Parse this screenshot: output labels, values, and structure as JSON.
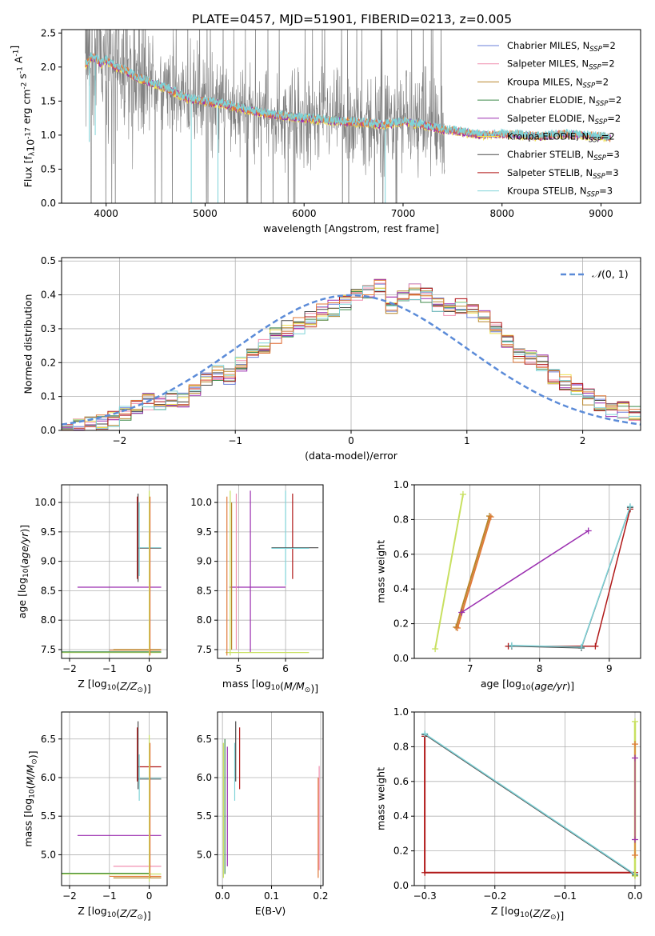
{
  "figure_title": "PLATE=0457, MJD=51901, FIBERID=0213, z=0.005",
  "colors": {
    "Chabrier MILES": "#6a7fd8",
    "Salpeter MILES": "#f08fb0",
    "Kroupa MILES": "#b8862b",
    "Chabrier ELODIE": "#3f8a4a",
    "Salpeter ELODIE": "#9b2fb0",
    "Kroupa ELODIE": "#f0e050",
    "Chabrier STELIB": "#4a4a4a",
    "Salpeter STELIB": "#b01818",
    "Kroupa STELIB": "#7fd3d8",
    "data": "#808080",
    "orange": "#e07a3a",
    "yellowgreen": "#c8e060",
    "gaussian": "#5b8bd8"
  },
  "chart_data": [
    {
      "id": "spectrum",
      "type": "line",
      "title": "PLATE=0457, MJD=51901, FIBERID=0213, z=0.005",
      "xlabel": "wavelength [Angstrom, rest frame]",
      "ylabel": "Flux [f_λ10^-17 erg cm^-2 s^-1 A^-1]",
      "xlim": [
        3550,
        9400
      ],
      "ylim": [
        0,
        2.55
      ],
      "xticks": [
        4000,
        5000,
        6000,
        7000,
        8000,
        9000
      ],
      "yticks": [
        0.0,
        0.5,
        1.0,
        1.5,
        2.0,
        2.5
      ],
      "grid": false,
      "legend_position": "top-right",
      "legend": [
        {
          "name": "Chabrier MILES, N_SSP=2",
          "base": "Chabrier MILES, N",
          "sub": "SSP",
          "tail": "=2"
        },
        {
          "name": "Salpeter MILES, N_SSP=2",
          "base": "Salpeter MILES, N",
          "sub": "SSP",
          "tail": "=2"
        },
        {
          "name": "Kroupa MILES, N_SSP=2",
          "base": "Kroupa MILES, N",
          "sub": "SSP",
          "tail": "=2"
        },
        {
          "name": "Chabrier ELODIE, N_SSP=2",
          "base": "Chabrier ELODIE, N",
          "sub": "SSP",
          "tail": "=2"
        },
        {
          "name": "Salpeter ELODIE, N_SSP=2",
          "base": "Salpeter ELODIE, N",
          "sub": "SSP",
          "tail": "=2"
        },
        {
          "name": "Kroupa ELODIE, N_SSP=2",
          "base": "Kroupa ELODIE, N",
          "sub": "SSP",
          "tail": "=2"
        },
        {
          "name": "Chabrier STELIB, N_SSP=3",
          "base": "Chabrier STELIB, N",
          "sub": "SSP",
          "tail": "=3"
        },
        {
          "name": "Salpeter STELIB, N_SSP=3",
          "base": "Salpeter STELIB, N",
          "sub": "SSP",
          "tail": "=3"
        },
        {
          "name": "Kroupa STELIB, N_SSP=3",
          "base": "Kroupa STELIB, N",
          "sub": "SSP",
          "tail": "=3"
        }
      ],
      "continuum": {
        "x": [
          3800,
          3850,
          3900,
          3950,
          4000,
          4100,
          4200,
          4300,
          4400,
          4600,
          4800,
          5000,
          5200,
          5400,
          5600,
          5800,
          6000,
          6200,
          6400,
          6600,
          6800,
          7000,
          7200,
          7400,
          7600,
          7800,
          8000,
          8200,
          8400,
          8600,
          8800,
          9000,
          9100
        ],
        "y": [
          2.05,
          2.15,
          2.12,
          2.05,
          2.1,
          2.0,
          1.95,
          1.85,
          1.8,
          1.7,
          1.55,
          1.5,
          1.45,
          1.38,
          1.32,
          1.28,
          1.25,
          1.22,
          1.2,
          1.18,
          1.15,
          1.2,
          1.15,
          1.08,
          1.05,
          1.0,
          1.02,
          1.0,
          0.98,
          1.02,
          1.0,
          0.98,
          0.95
        ]
      },
      "data_range": [
        3790,
        7420
      ],
      "model_range": [
        3790,
        9100
      ]
    },
    {
      "id": "residuals",
      "type": "histogram",
      "xlabel": "(data-model)/error",
      "ylabel": "Normed distribution",
      "xlim": [
        -2.5,
        2.5
      ],
      "ylim": [
        0,
        0.51
      ],
      "xticks": [
        -2,
        -1,
        0,
        1,
        2
      ],
      "yticks": [
        0.0,
        0.1,
        0.2,
        0.3,
        0.4,
        0.5
      ],
      "grid": true,
      "legend_position": "top-right",
      "gaussian_label": "N(0,1)",
      "gaussian_label_script": "𝒩",
      "gaussian_label_tail": "(0, 1)",
      "bin_start": -2.5,
      "bin_width": 0.1,
      "base_heights": [
        0.005,
        0.01,
        0.015,
        0.025,
        0.035,
        0.05,
        0.065,
        0.085,
        0.085,
        0.095,
        0.09,
        0.12,
        0.15,
        0.17,
        0.16,
        0.2,
        0.23,
        0.25,
        0.28,
        0.3,
        0.31,
        0.33,
        0.35,
        0.36,
        0.38,
        0.4,
        0.41,
        0.43,
        0.37,
        0.4,
        0.41,
        0.4,
        0.37,
        0.35,
        0.37,
        0.35,
        0.33,
        0.3,
        0.26,
        0.22,
        0.22,
        0.2,
        0.16,
        0.14,
        0.12,
        0.1,
        0.08,
        0.065,
        0.06,
        0.05
      ]
    },
    {
      "id": "age-vs-Z",
      "type": "errorbar",
      "xlabel": "Z [log10(Z/Z⊙)]",
      "ylabel": "age [log10(age/yr)]",
      "xlim": [
        -2.2,
        0.45
      ],
      "ylim": [
        7.35,
        10.3
      ],
      "xticks": [
        -2,
        -1,
        0
      ],
      "yticks": [
        7.5,
        8.0,
        8.5,
        9.0,
        9.5,
        10.0
      ],
      "grid": true,
      "segments": [
        {
          "c": "#9b2fb0",
          "x": [
            -1.8,
            0.3
          ],
          "y": [
            8.56,
            8.56
          ]
        },
        {
          "c": "#c8e060",
          "x": [
            -2.2,
            0.3
          ],
          "y": [
            7.45,
            7.45
          ]
        },
        {
          "c": "#3f8a4a",
          "x": [
            -2.2,
            0.3
          ],
          "y": [
            7.46,
            7.46
          ]
        },
        {
          "c": "#e07a3a",
          "x": [
            -1.0,
            0.3
          ],
          "y": [
            7.49,
            7.49
          ]
        },
        {
          "c": "#b8862b",
          "x": [
            -0.9,
            0.3
          ],
          "y": [
            7.5,
            7.5
          ]
        },
        {
          "c": "#7fd3d8",
          "x": [
            -0.3,
            0.3
          ],
          "y": [
            9.23,
            9.23
          ]
        },
        {
          "c": "#808080",
          "x": [
            -0.3,
            0.3
          ],
          "y": [
            9.22,
            9.22
          ]
        },
        {
          "c": "#4a4a4a",
          "x": [
            -0.28,
            -0.28
          ],
          "y": [
            8.65,
            10.15
          ]
        },
        {
          "c": "#b01818",
          "x": [
            -0.3,
            -0.3
          ],
          "y": [
            8.7,
            10.1
          ]
        },
        {
          "c": "#7fd3d8",
          "x": [
            -0.25,
            -0.25
          ],
          "y": [
            8.75,
            10.0
          ]
        },
        {
          "c": "#c8e060",
          "x": [
            0.0,
            0.0
          ],
          "y": [
            7.4,
            10.2
          ]
        },
        {
          "c": "#e07a3a",
          "x": [
            0.02,
            0.02
          ],
          "y": [
            7.4,
            10.1
          ]
        }
      ]
    },
    {
      "id": "age-vs-mass",
      "type": "errorbar",
      "xlabel": "mass [log10(M/M⊙)]",
      "ylabel": "",
      "xlim": [
        4.55,
        6.8
      ],
      "ylim": [
        7.35,
        10.3
      ],
      "xticks": [
        5,
        6
      ],
      "yticks": [
        7.5,
        8.0,
        8.5,
        9.0,
        9.5,
        10.0
      ],
      "grid": true,
      "segments": [
        {
          "c": "#9b2fb0",
          "x": [
            4.8,
            6.0
          ],
          "y": [
            8.56,
            8.56
          ]
        },
        {
          "c": "#9b2fb0",
          "x": [
            5.25,
            5.25
          ],
          "y": [
            7.45,
            10.2
          ]
        },
        {
          "c": "#c8e060",
          "x": [
            4.72,
            6.5
          ],
          "y": [
            7.45,
            7.45
          ]
        },
        {
          "c": "#c8e060",
          "x": [
            4.82,
            4.82
          ],
          "y": [
            7.4,
            10.2
          ]
        },
        {
          "c": "#e07a3a",
          "x": [
            4.75,
            4.75
          ],
          "y": [
            7.4,
            10.1
          ]
        },
        {
          "c": "#f08fb0",
          "x": [
            4.95,
            4.95
          ],
          "y": [
            7.5,
            10.15
          ]
        },
        {
          "c": "#b8862b",
          "x": [
            4.85,
            4.85
          ],
          "y": [
            7.5,
            10.0
          ]
        },
        {
          "c": "#7fd3d8",
          "x": [
            6.0,
            6.0
          ],
          "y": [
            8.6,
            10.2
          ]
        },
        {
          "c": "#b01818",
          "x": [
            6.15,
            6.15
          ],
          "y": [
            8.7,
            10.15
          ]
        },
        {
          "c": "#4a4a4a",
          "x": [
            5.7,
            6.7
          ],
          "y": [
            9.23,
            9.23
          ]
        },
        {
          "c": "#7fd3d8",
          "x": [
            5.7,
            6.5
          ],
          "y": [
            9.22,
            9.22
          ]
        }
      ]
    },
    {
      "id": "weight-vs-age",
      "type": "line",
      "xlabel": "age [log10(age/yr)]",
      "ylabel": "mass weight",
      "xlim": [
        6.2,
        9.45
      ],
      "ylim": [
        0.0,
        1.0
      ],
      "xticks": [
        7,
        8,
        9
      ],
      "yticks": [
        0.0,
        0.2,
        0.4,
        0.6,
        0.8,
        1.0
      ],
      "grid": true,
      "series": [
        {
          "c": "#c8e060",
          "x": [
            6.5,
            6.9
          ],
          "y": [
            0.055,
            0.945
          ],
          "w": 2
        },
        {
          "c": "#b8862b",
          "x": [
            6.8,
            7.28
          ],
          "y": [
            0.18,
            0.82
          ],
          "w": 2
        },
        {
          "c": "#e07a3a",
          "x": [
            6.82,
            7.3
          ],
          "y": [
            0.175,
            0.815
          ],
          "w": 2
        },
        {
          "c": "#9b2fb0",
          "x": [
            6.88,
            8.7
          ],
          "y": [
            0.265,
            0.735
          ],
          "w": 1.5
        },
        {
          "c": "#b01818",
          "x": [
            7.55,
            8.8,
            9.3
          ],
          "y": [
            0.07,
            0.07,
            0.86
          ],
          "w": 1.5
        },
        {
          "c": "#4a4a4a",
          "x": [
            7.6,
            8.6,
            9.3
          ],
          "y": [
            0.07,
            0.06,
            0.87
          ],
          "w": 1.2
        },
        {
          "c": "#7fd3d8",
          "x": [
            7.6,
            8.6,
            9.3
          ],
          "y": [
            0.075,
            0.065,
            0.875
          ],
          "w": 1.5
        }
      ]
    },
    {
      "id": "mass-vs-Z",
      "type": "errorbar",
      "xlabel": "Z [log10(Z/Z⊙)]",
      "ylabel": "mass [log10(M/M⊙)]",
      "xlim": [
        -2.2,
        0.45
      ],
      "ylim": [
        4.6,
        6.85
      ],
      "xticks": [
        -2,
        -1,
        0
      ],
      "yticks": [
        5.0,
        5.5,
        6.0,
        6.5
      ],
      "grid": true,
      "segments": [
        {
          "c": "#9b2fb0",
          "x": [
            -1.8,
            0.3
          ],
          "y": [
            5.25,
            5.25
          ]
        },
        {
          "c": "#f08fb0",
          "x": [
            -0.9,
            0.3
          ],
          "y": [
            4.85,
            4.85
          ]
        },
        {
          "c": "#c8e060",
          "x": [
            -2.2,
            0.3
          ],
          "y": [
            4.75,
            4.75
          ]
        },
        {
          "c": "#3f8a4a",
          "x": [
            -2.2,
            0.0
          ],
          "y": [
            4.76,
            4.76
          ]
        },
        {
          "c": "#e07a3a",
          "x": [
            -1.0,
            0.3
          ],
          "y": [
            4.72,
            4.72
          ]
        },
        {
          "c": "#b8862b",
          "x": [
            -0.9,
            0.3
          ],
          "y": [
            4.7,
            4.7
          ]
        },
        {
          "c": "#b01818",
          "x": [
            -0.3,
            0.3
          ],
          "y": [
            6.14,
            6.14
          ]
        },
        {
          "c": "#7fd3d8",
          "x": [
            -0.3,
            0.3
          ],
          "y": [
            5.99,
            5.99
          ]
        },
        {
          "c": "#808080",
          "x": [
            -0.3,
            0.3
          ],
          "y": [
            5.98,
            5.98
          ]
        },
        {
          "c": "#4a4a4a",
          "x": [
            -0.28,
            -0.28
          ],
          "y": [
            5.85,
            6.73
          ]
        },
        {
          "c": "#b01818",
          "x": [
            -0.3,
            -0.3
          ],
          "y": [
            5.95,
            6.65
          ]
        },
        {
          "c": "#7fd3d8",
          "x": [
            -0.25,
            -0.25
          ],
          "y": [
            5.7,
            6.3
          ]
        },
        {
          "c": "#c8e060",
          "x": [
            0.0,
            0.0
          ],
          "y": [
            4.65,
            6.55
          ]
        },
        {
          "c": "#e07a3a",
          "x": [
            0.02,
            0.02
          ],
          "y": [
            4.7,
            6.45
          ]
        }
      ]
    },
    {
      "id": "mass-vs-EBV",
      "type": "errorbar",
      "xlabel": "E(B-V)",
      "ylabel": "",
      "xlim": [
        -0.01,
        0.205
      ],
      "ylim": [
        4.6,
        6.85
      ],
      "xticks": [
        0.0,
        0.1,
        0.2
      ],
      "yticks": [
        5.0,
        5.5,
        6.0,
        6.5
      ],
      "grid": true,
      "segments": [
        {
          "c": "#c8e060",
          "x": [
            0.002,
            0.002
          ],
          "y": [
            4.7,
            6.45
          ]
        },
        {
          "c": "#3f8a4a",
          "x": [
            0.005,
            0.005
          ],
          "y": [
            4.75,
            6.5
          ]
        },
        {
          "c": "#9b2fb0",
          "x": [
            0.01,
            0.01
          ],
          "y": [
            4.85,
            6.4
          ]
        },
        {
          "c": "#7fd3d8",
          "x": [
            0.025,
            0.025
          ],
          "y": [
            5.7,
            6.45
          ]
        },
        {
          "c": "#4a4a4a",
          "x": [
            0.027,
            0.027
          ],
          "y": [
            5.95,
            6.73
          ]
        },
        {
          "c": "#b01818",
          "x": [
            0.035,
            0.035
          ],
          "y": [
            5.85,
            6.65
          ]
        },
        {
          "c": "#e07a3a",
          "x": [
            0.195,
            0.195
          ],
          "y": [
            4.7,
            6.0
          ]
        },
        {
          "c": "#f08fb0",
          "x": [
            0.197,
            0.197
          ],
          "y": [
            4.8,
            6.15
          ]
        }
      ]
    },
    {
      "id": "weight-vs-Z",
      "type": "line",
      "xlabel": "Z [log10(Z/Z⊙)]",
      "ylabel": "mass weight",
      "xlim": [
        -0.315,
        0.008
      ],
      "ylim": [
        0.0,
        1.0
      ],
      "xticks": [
        -0.3,
        -0.2,
        -0.1,
        0.0
      ],
      "yticks": [
        0.0,
        0.2,
        0.4,
        0.6,
        0.8,
        1.0
      ],
      "grid": true,
      "series": [
        {
          "c": "#b01818",
          "x": [
            0.0,
            -0.3,
            -0.3
          ],
          "y": [
            0.075,
            0.075,
            0.86
          ],
          "w": 2
        },
        {
          "c": "#4a4a4a",
          "x": [
            -0.3,
            0.0
          ],
          "y": [
            0.87,
            0.06
          ],
          "w": 1.2
        },
        {
          "c": "#7fd3d8",
          "x": [
            -0.3,
            0.0
          ],
          "y": [
            0.875,
            0.065
          ],
          "w": 1.5
        },
        {
          "c": "#c8e060",
          "x": [
            0.0,
            0.0
          ],
          "y": [
            0.055,
            0.945
          ],
          "w": 2.5
        },
        {
          "c": "#e07a3a",
          "x": [
            0.0,
            0.0
          ],
          "y": [
            0.175,
            0.815
          ],
          "w": 1.5
        },
        {
          "c": "#9b2fb0",
          "x": [
            0.0,
            0.0
          ],
          "y": [
            0.265,
            0.735
          ],
          "w": 1
        }
      ]
    }
  ]
}
